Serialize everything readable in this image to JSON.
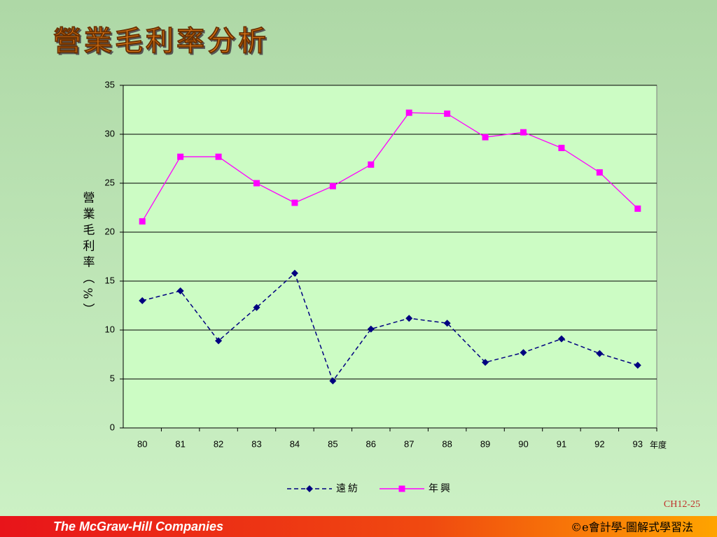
{
  "chart_data": {
    "type": "line",
    "title": "營業毛利率分析",
    "y_label": "營業毛利率（%）",
    "x_label": "年度",
    "categories": [
      "80",
      "81",
      "82",
      "83",
      "84",
      "85",
      "86",
      "87",
      "88",
      "89",
      "90",
      "91",
      "92",
      "93"
    ],
    "series": [
      {
        "name": "遠紡",
        "color": "#000080",
        "line_style": "dashed",
        "marker": "diamond",
        "values": [
          13,
          14,
          8.9,
          12.3,
          15.8,
          4.8,
          10.1,
          11.2,
          10.7,
          6.7,
          7.7,
          9.1,
          7.6,
          6.4
        ]
      },
      {
        "name": "年興",
        "color": "#ff00ff",
        "line_style": "solid",
        "marker": "square",
        "values": [
          21.1,
          27.7,
          27.7,
          25,
          23,
          24.7,
          26.9,
          32.2,
          32.1,
          29.7,
          30.2,
          28.6,
          26.1,
          22.4
        ]
      }
    ],
    "ylim": [
      0,
      35
    ],
    "yticks": [
      0,
      5,
      10,
      15,
      20,
      25,
      30,
      35
    ],
    "grid": true,
    "legend": "bottom"
  },
  "slide": {
    "page": "CH12-25",
    "publisher": "The McGraw-Hill Companies",
    "copyright": "©e會計學-圖解式學習法"
  }
}
